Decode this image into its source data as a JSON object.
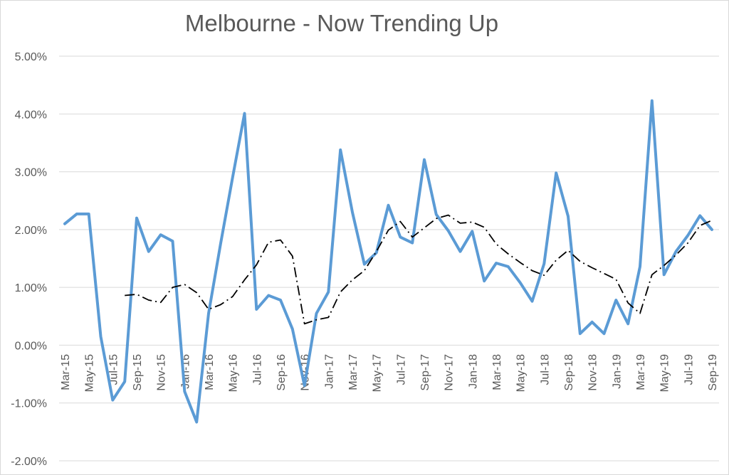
{
  "chart_data": {
    "type": "line",
    "title": "Melbourne - Now Trending Up",
    "xlabel": "",
    "ylabel": "",
    "ylim": [
      -2.0,
      5.0
    ],
    "yticks": [
      "-2.00%",
      "-1.00%",
      "0.00%",
      "1.00%",
      "2.00%",
      "3.00%",
      "4.00%",
      "5.00%"
    ],
    "grid": true,
    "legend": "none",
    "categories": [
      "Mar-15",
      "Apr-15",
      "May-15",
      "Jun-15",
      "Jul-15",
      "Aug-15",
      "Sep-15",
      "Oct-15",
      "Nov-15",
      "Dec-15",
      "Jan-16",
      "Feb-16",
      "Mar-16",
      "Apr-16",
      "May-16",
      "Jun-16",
      "Jul-16",
      "Aug-16",
      "Sep-16",
      "Oct-16",
      "Nov-16",
      "Dec-16",
      "Jan-17",
      "Feb-17",
      "Mar-17",
      "Apr-17",
      "May-17",
      "Jun-17",
      "Jul-17",
      "Aug-17",
      "Sep-17",
      "Oct-17",
      "Nov-17",
      "Dec-17",
      "Jan-18",
      "Feb-18",
      "Mar-18",
      "Apr-18",
      "May-18",
      "Jun-18",
      "Jul-18",
      "Aug-18",
      "Sep-18",
      "Oct-18",
      "Nov-18",
      "Dec-18",
      "Jan-19",
      "Feb-19",
      "Mar-19",
      "Apr-19",
      "May-19",
      "Jun-19",
      "Jul-19",
      "Aug-19",
      "Sep-19"
    ],
    "xtick_labels": [
      "Mar-15",
      "May-15",
      "Jul-15",
      "Sep-15",
      "Nov-15",
      "Jan-16",
      "Mar-16",
      "May-16",
      "Jul-16",
      "Sep-16",
      "Nov-16",
      "Jan-17",
      "Mar-17",
      "May-17",
      "Jul-17",
      "Sep-17",
      "Nov-17",
      "Jan-18",
      "Mar-18",
      "May-18",
      "Jul-18",
      "Sep-18",
      "Nov-18",
      "Jan-19",
      "Mar-19",
      "May-19",
      "Jul-19",
      "Sep-19"
    ],
    "series": [
      {
        "style": "solid",
        "color": "#5b9bd5",
        "values": [
          2.1,
          2.27,
          2.27,
          0.15,
          -0.95,
          -0.63,
          2.2,
          1.62,
          1.91,
          1.8,
          -0.8,
          -1.33,
          0.55,
          1.75,
          2.9,
          4.01,
          0.62,
          0.86,
          0.78,
          0.28,
          -0.7,
          0.55,
          0.92,
          3.38,
          2.3,
          1.4,
          1.6,
          2.42,
          1.87,
          1.77,
          3.21,
          2.26,
          1.98,
          1.62,
          1.97,
          1.11,
          1.42,
          1.36,
          1.08,
          0.76,
          1.41,
          2.98,
          2.23,
          0.2,
          0.4,
          0.2,
          0.78,
          0.37,
          1.36,
          4.23,
          1.22,
          1.62,
          1.9,
          2.24,
          2.0
        ]
      },
      {
        "style": "dash-dot",
        "color": "#000000",
        "values": [
          null,
          null,
          null,
          null,
          null,
          0.86,
          0.88,
          0.78,
          0.74,
          1.0,
          1.05,
          0.91,
          0.62,
          0.7,
          0.84,
          1.13,
          1.39,
          1.78,
          1.82,
          1.54,
          0.37,
          0.44,
          0.48,
          0.92,
          1.13,
          1.29,
          1.62,
          1.99,
          2.14,
          1.87,
          2.03,
          2.19,
          2.25,
          2.11,
          2.13,
          2.04,
          1.75,
          1.58,
          1.43,
          1.29,
          1.21,
          1.47,
          1.64,
          1.45,
          1.34,
          1.24,
          1.14,
          0.73,
          0.55,
          1.22,
          1.38,
          1.56,
          1.77,
          2.07,
          2.16
        ]
      }
    ]
  }
}
